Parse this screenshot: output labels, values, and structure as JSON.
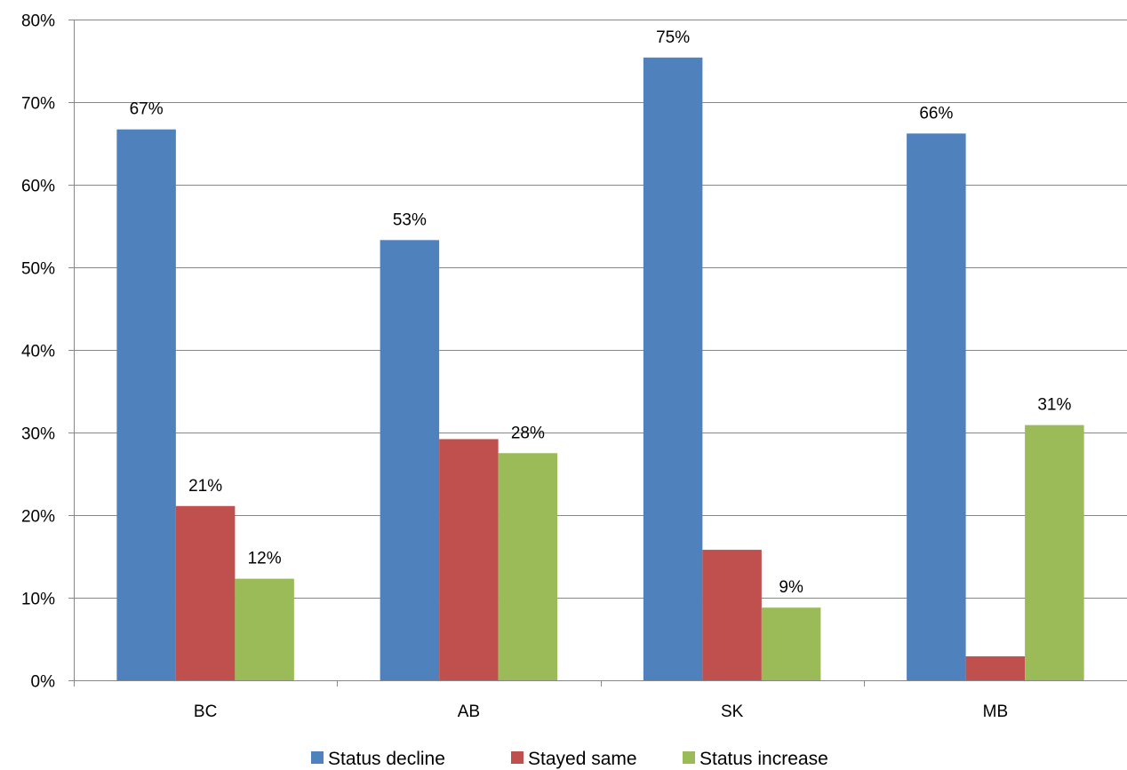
{
  "chart_data": {
    "type": "bar",
    "title": "",
    "xlabel": "",
    "ylabel": "",
    "categories": [
      "BC",
      "AB",
      "SK",
      "MB"
    ],
    "series": [
      {
        "name": "Status decline",
        "color": "#4F81BD",
        "values": [
          0.667,
          0.533,
          0.754,
          0.662
        ],
        "labels": [
          "67%",
          "53%",
          "75%",
          "66%"
        ]
      },
      {
        "name": "Stayed same",
        "color": "#C0504D",
        "values": [
          0.211,
          0.292,
          0.158,
          0.029
        ],
        "labels": [
          "21%",
          "",
          "",
          ""
        ]
      },
      {
        "name": "Status increase",
        "color": "#9BBB59",
        "values": [
          0.123,
          0.275,
          0.088,
          0.309
        ],
        "labels": [
          "12%",
          "28%",
          "9%",
          "31%"
        ]
      }
    ],
    "ylim": [
      0,
      0.8
    ],
    "yticks": [
      0,
      0.1,
      0.2,
      0.3,
      0.4,
      0.5,
      0.6,
      0.7,
      0.8
    ],
    "ytick_labels": [
      "0%",
      "10%",
      "20%",
      "30%",
      "40%",
      "50%",
      "60%",
      "70%",
      "80%"
    ],
    "grid": true,
    "legend_position": "bottom"
  }
}
